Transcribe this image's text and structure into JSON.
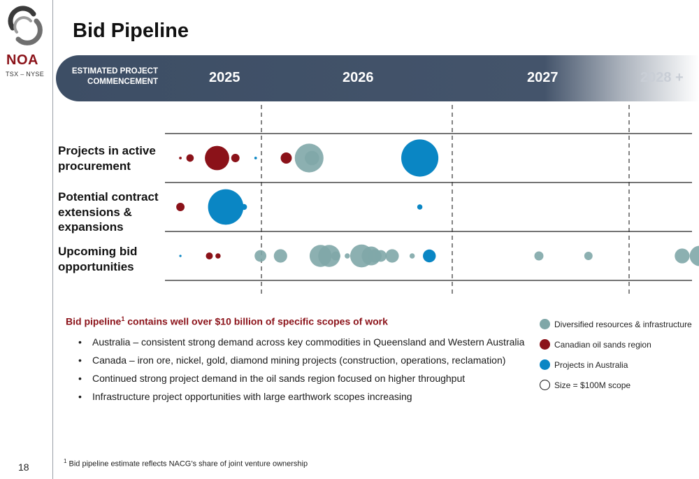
{
  "logo": {
    "name": "NOA",
    "ticker": "TSX – NYSE"
  },
  "page_number": "18",
  "title": "Bid Pipeline",
  "banner": {
    "label": "ESTIMATED PROJECT COMMENCEMENT"
  },
  "colors": {
    "diversified": "#7fa7a8",
    "oil_sands": "#8b1219",
    "australia": "#0a86c4",
    "banner": "#44546b",
    "accent_text": "#8b1219"
  },
  "chart_data": {
    "type": "scatter",
    "title": "",
    "x_axis": {
      "label": "ESTIMATED PROJECT COMMENCEMENT",
      "ticks": [
        "2025",
        "2026",
        "2027",
        "2028 +"
      ],
      "dividers": [
        "2025",
        "2027",
        "2028 +"
      ]
    },
    "rows": [
      "Projects in active procurement",
      "Potential contract extensions & expansions",
      "Upcoming bid opportunities"
    ],
    "size_unit": "$100M scope",
    "series": [
      {
        "name": "Diversified resources & infrastructure",
        "color": "#7fa7a8",
        "points": [
          {
            "row": 0,
            "x": 2025.5,
            "size": 6
          },
          {
            "row": 0,
            "x": 2025.53,
            "size": 1.5
          },
          {
            "row": 2,
            "x": 2024.99,
            "size": 1
          },
          {
            "row": 2,
            "x": 2025.2,
            "size": 1.3
          },
          {
            "row": 2,
            "x": 2025.62,
            "size": 3.5
          },
          {
            "row": 2,
            "x": 2025.71,
            "size": 3.5
          },
          {
            "row": 2,
            "x": 2025.78,
            "size": 0.6
          },
          {
            "row": 2,
            "x": 2025.9,
            "size": 0.2
          },
          {
            "row": 2,
            "x": 2026.05,
            "size": 3.8
          },
          {
            "row": 2,
            "x": 2026.15,
            "size": 2.6
          },
          {
            "row": 2,
            "x": 2026.19,
            "size": 1.3
          },
          {
            "row": 2,
            "x": 2026.25,
            "size": 1
          },
          {
            "row": 2,
            "x": 2026.37,
            "size": 1.3
          },
          {
            "row": 2,
            "x": 2026.58,
            "size": 0.2
          },
          {
            "row": 2,
            "x": 2027.49,
            "size": 0.6
          },
          {
            "row": 2,
            "x": 2027.77,
            "size": 0.5
          },
          {
            "row": 2,
            "x": 2028.3,
            "size": 1.6
          },
          {
            "row": 2,
            "x": 2028.4,
            "size": 3
          }
        ]
      },
      {
        "name": "Canadian oil sands region",
        "color": "#8b1219",
        "points": [
          {
            "row": 0,
            "x": 2024.16,
            "size": 0.05
          },
          {
            "row": 0,
            "x": 2024.26,
            "size": 0.4
          },
          {
            "row": 0,
            "x": 2024.54,
            "size": 4.3
          },
          {
            "row": 0,
            "x": 2024.73,
            "size": 0.5
          },
          {
            "row": 0,
            "x": 2025.26,
            "size": 0.9
          },
          {
            "row": 1,
            "x": 2024.16,
            "size": 0.5
          },
          {
            "row": 2,
            "x": 2024.46,
            "size": 0.35
          },
          {
            "row": 2,
            "x": 2024.55,
            "size": 0.2
          }
        ]
      },
      {
        "name": "Projects in Australia",
        "color": "#0a86c4",
        "points": [
          {
            "row": 0,
            "x": 2026.66,
            "size": 10
          },
          {
            "row": 0,
            "x": 2024.94,
            "size": 0.05
          },
          {
            "row": 1,
            "x": 2024.63,
            "size": 9.1
          },
          {
            "row": 1,
            "x": 2024.82,
            "size": 0.25
          },
          {
            "row": 1,
            "x": 2026.66,
            "size": 0.2
          },
          {
            "row": 2,
            "x": 2024.16,
            "size": 0.03
          },
          {
            "row": 2,
            "x": 2026.76,
            "size": 1.2
          }
        ]
      }
    ],
    "legend": {
      "position": "bottom-right",
      "size_note": "Size = $100M scope"
    }
  },
  "rows": {
    "active": "Projects in active procurement",
    "extensions": "Potential contract extensions & expansions",
    "upcoming": "Upcoming bid opportunities"
  },
  "summary": {
    "title": "Bid pipeline",
    "title_sup": "1",
    "title_rest": " contains well over $10 billion of specific scopes of work",
    "bullets": [
      "Australia – consistent strong demand across key commodities in Queensland and Western Australia",
      "Canada – iron ore, nickel, gold, diamond mining projects (construction, operations, reclamation)",
      "Continued strong project demand in the oil sands region focused on higher throughput",
      "Infrastructure project opportunities with large earthwork scopes increasing"
    ]
  },
  "legend": {
    "diversified": "Diversified resources & infrastructure",
    "oil_sands": "Canadian oil sands region",
    "australia": "Projects in Australia",
    "size": "Size = $100M scope"
  },
  "footnote": {
    "sup": "1",
    "text": " Bid pipeline estimate reflects NACG’s share of joint venture ownership"
  }
}
